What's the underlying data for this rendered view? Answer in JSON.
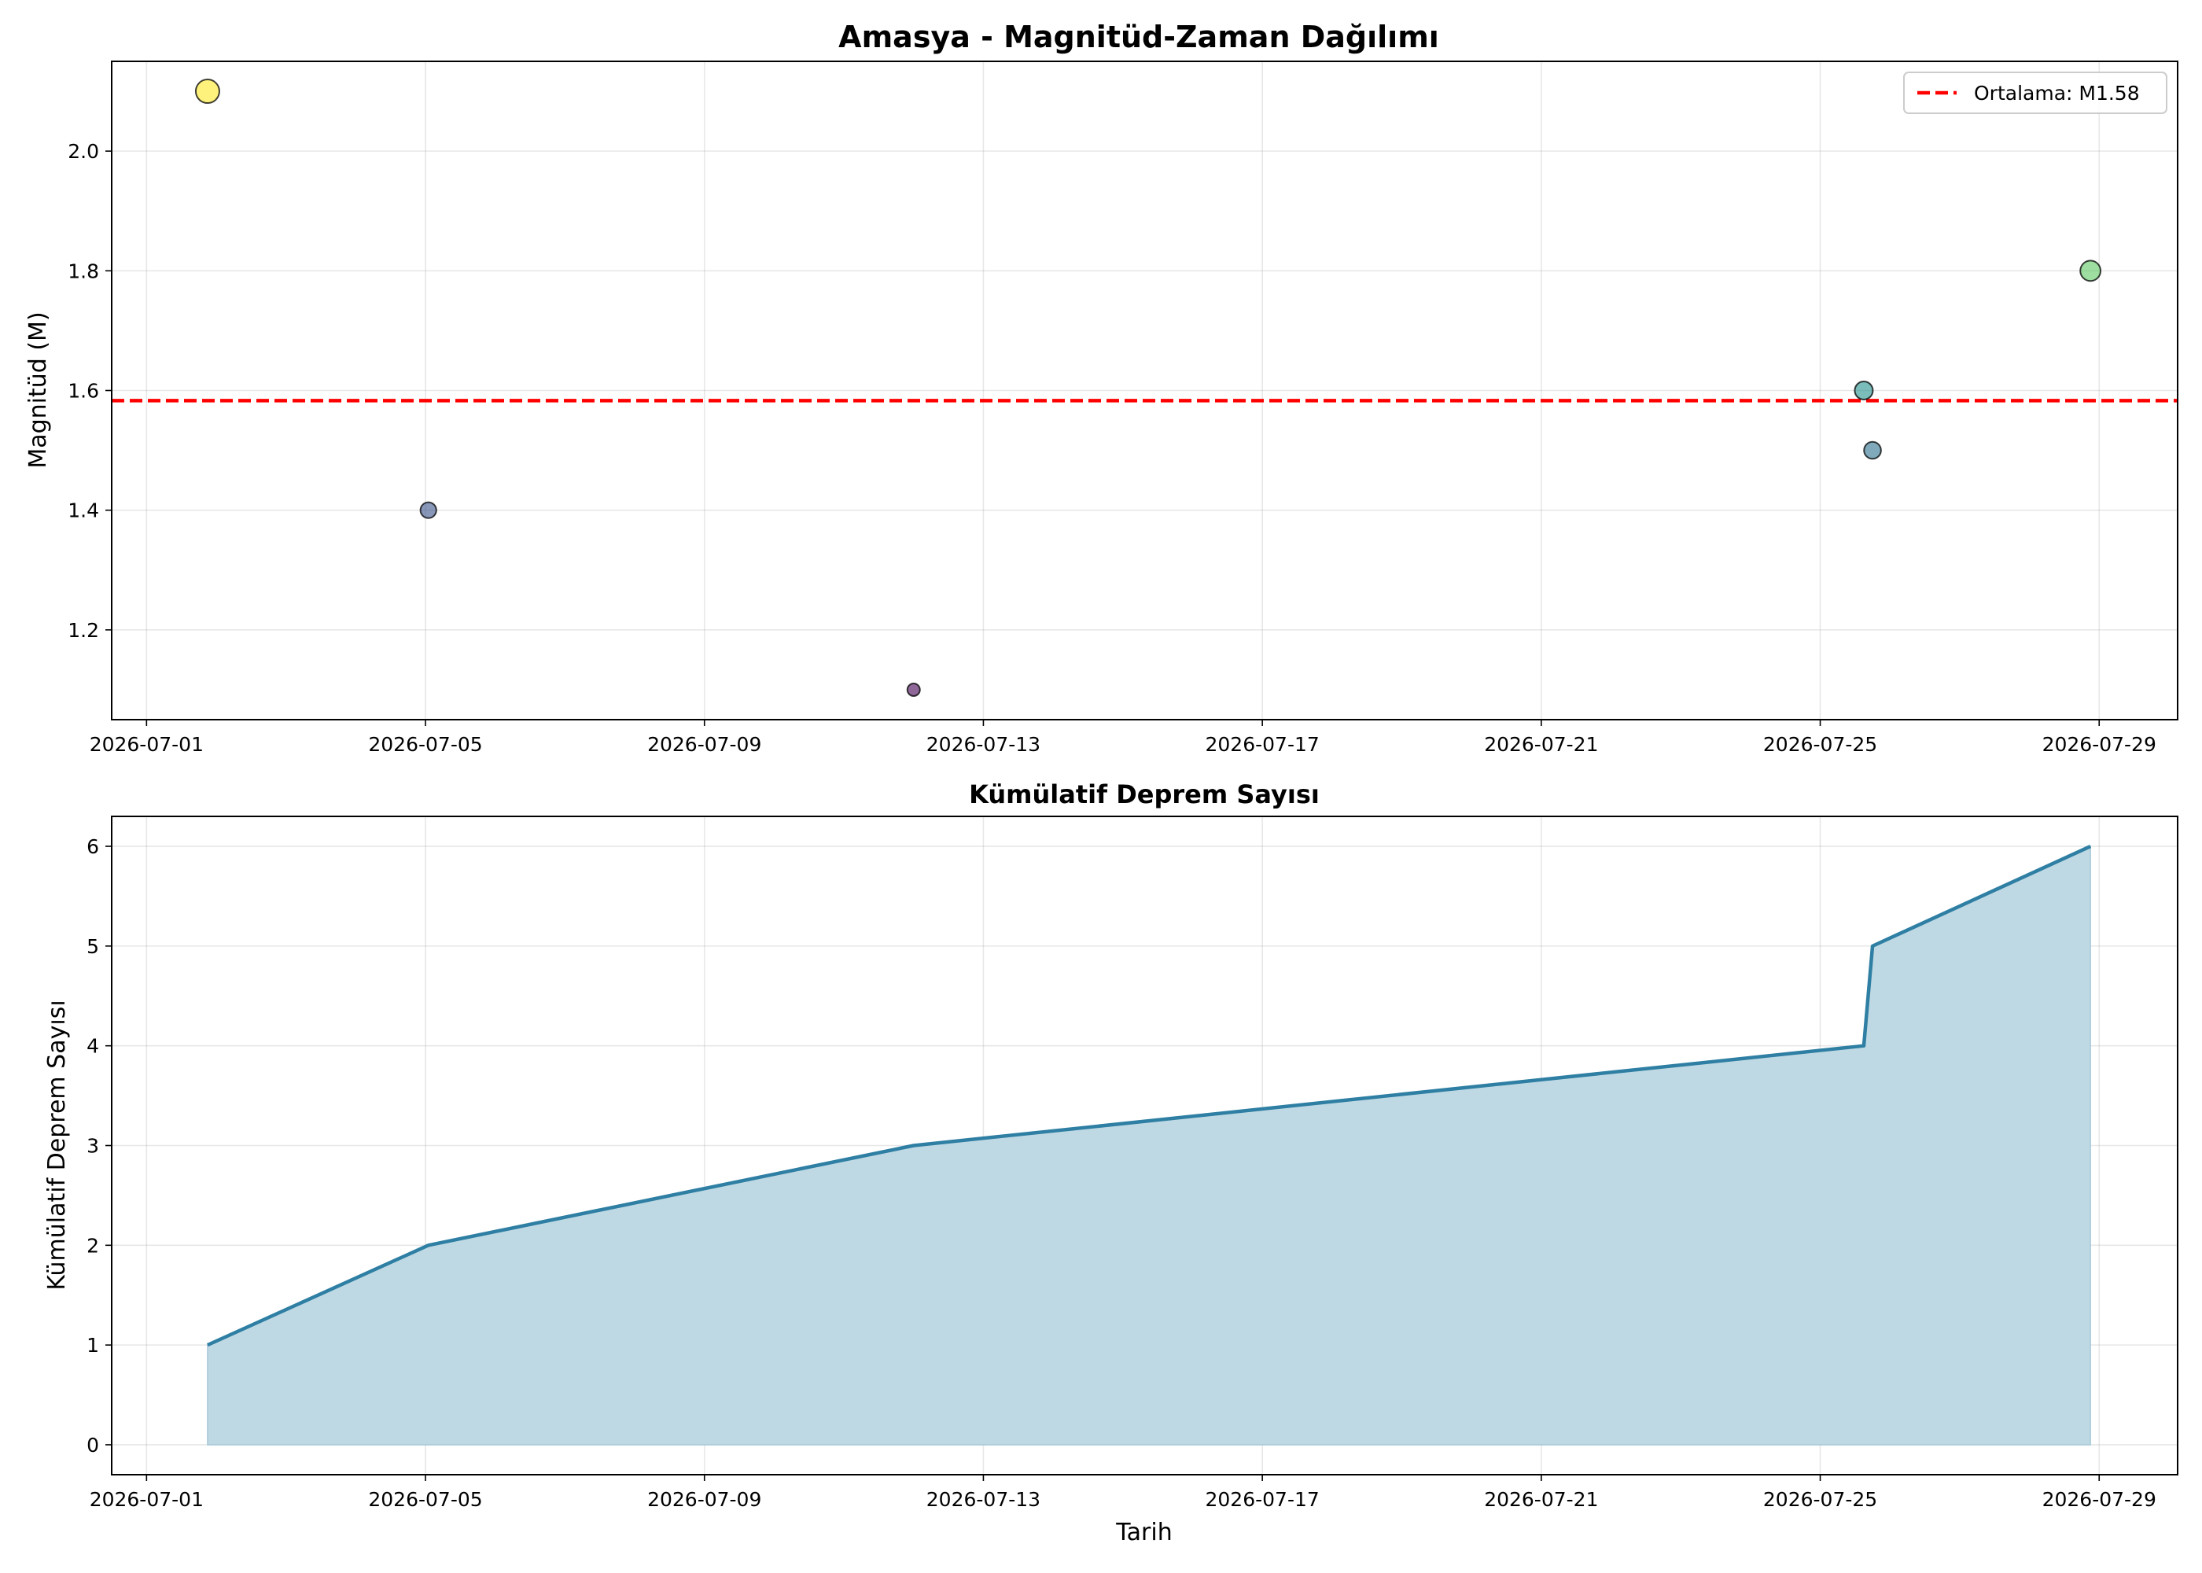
{
  "chart_data": [
    {
      "type": "scatter",
      "title": "Amasya - Magnitüd-Zaman Dağılımı",
      "xlabel": "",
      "ylabel": "Magnitüd (M)",
      "xlim": [
        "2026-06-30T12:00",
        "2026-07-30T03:00"
      ],
      "ylim": [
        1.05,
        2.15
      ],
      "x_ticks": [
        "2026-07-01",
        "2026-07-05",
        "2026-07-09",
        "2026-07-13",
        "2026-07-17",
        "2026-07-21",
        "2026-07-25",
        "2026-07-29"
      ],
      "y_ticks": [
        1.2,
        1.4,
        1.6,
        1.8,
        2.0
      ],
      "grid": true,
      "legend_position": "top-right",
      "points": [
        {
          "x": "2026-07-01T21:00",
          "y": 2.1,
          "color": "#fde725"
        },
        {
          "x": "2026-07-05T01:00",
          "y": 1.4,
          "color": "#3b528b"
        },
        {
          "x": "2026-07-12T00:00",
          "y": 1.1,
          "color": "#440154"
        },
        {
          "x": "2026-07-25T15:00",
          "y": 1.6,
          "color": "#21918c"
        },
        {
          "x": "2026-07-25T18:00",
          "y": 1.5,
          "color": "#2c728e"
        },
        {
          "x": "2026-07-28T21:00",
          "y": 1.8,
          "color": "#5ec962"
        }
      ],
      "mean_line": {
        "label": "Ortalama: M1.58",
        "value": 1.583,
        "color": "#ff0000"
      }
    },
    {
      "type": "area",
      "title": "Kümülatif Deprem Sayısı",
      "xlabel": "Tarih",
      "ylabel": "Kümülatif Deprem Sayısı",
      "xlim": [
        "2026-06-30T12:00",
        "2026-07-30T03:00"
      ],
      "ylim": [
        -0.3,
        6.3
      ],
      "x_ticks": [
        "2026-07-01",
        "2026-07-05",
        "2026-07-09",
        "2026-07-13",
        "2026-07-17",
        "2026-07-21",
        "2026-07-25",
        "2026-07-29"
      ],
      "y_ticks": [
        0,
        1,
        2,
        3,
        4,
        5,
        6
      ],
      "grid": true,
      "line_color": "#2e7fa3",
      "fill_color": "#bfd9e4",
      "x": [
        "2026-07-01T21:00",
        "2026-07-05T01:00",
        "2026-07-12T00:00",
        "2026-07-25T15:00",
        "2026-07-25T18:00",
        "2026-07-28T21:00"
      ],
      "values": [
        1,
        2,
        3,
        4,
        5,
        6
      ]
    }
  ]
}
